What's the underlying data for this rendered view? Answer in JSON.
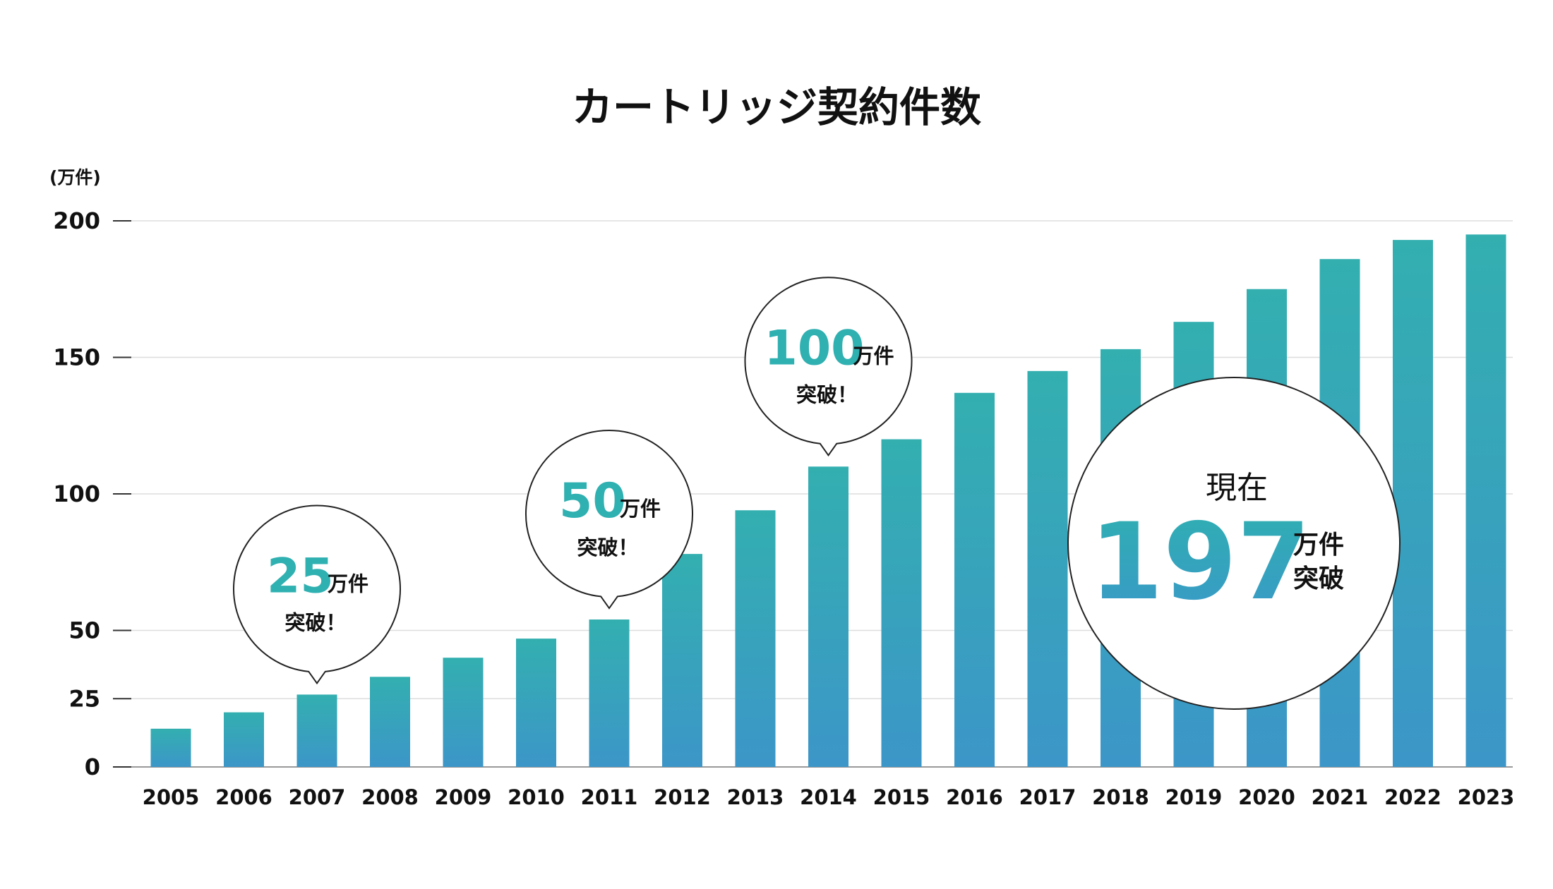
{
  "chart_data": {
    "type": "bar",
    "title": "カートリッジ契約件数",
    "ylabel": "(万件)",
    "xlabel": "",
    "ylim": [
      0,
      200
    ],
    "yticks": [
      0,
      25,
      50,
      100,
      150,
      200
    ],
    "grid": true,
    "categories": [
      "2005",
      "2006",
      "2007",
      "2008",
      "2009",
      "2010",
      "2011",
      "2012",
      "2013",
      "2014",
      "2015",
      "2016",
      "2017",
      "2018",
      "2019",
      "2020",
      "2021",
      "2022",
      "2023"
    ],
    "values": [
      14,
      20,
      26.5,
      33,
      40,
      47,
      54,
      78,
      94,
      110,
      120,
      137,
      145,
      153,
      163,
      175,
      186,
      193,
      195
    ],
    "colors": {
      "bar_top": "#33afb0",
      "bar_bottom": "#3c96c8",
      "grid": "#dddddd",
      "axis": "#999999"
    },
    "callouts": [
      {
        "year": "2007",
        "number": "25",
        "unit": "万件",
        "sub": "突破！"
      },
      {
        "year": "2011",
        "number": "50",
        "unit": "万件",
        "sub": "突破！"
      },
      {
        "year": "2014",
        "number": "100",
        "unit": "万件",
        "sub": "突破！"
      }
    ],
    "current": {
      "label": "現在",
      "number": "197",
      "unit": "万件",
      "sub": "突破"
    }
  }
}
